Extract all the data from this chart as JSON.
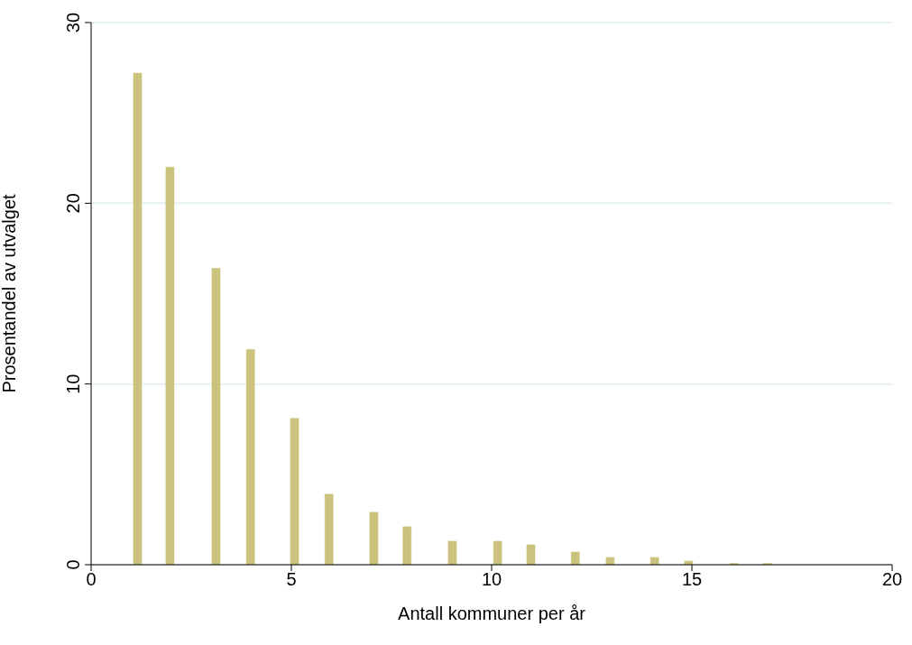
{
  "chart_data": {
    "type": "bar",
    "xlabel": "Antall kommuner per år",
    "ylabel": "Prosentandel av utvalget",
    "x": [
      1.17,
      1.98,
      3.13,
      3.99,
      5.09,
      5.95,
      7.07,
      7.9,
      9.03,
      10.16,
      10.99,
      12.1,
      12.97,
      14.08,
      14.93,
      16.06,
      16.9
    ],
    "values": [
      27.2,
      22.0,
      16.4,
      11.9,
      8.1,
      3.9,
      2.9,
      2.1,
      1.3,
      1.3,
      1.1,
      0.7,
      0.4,
      0.4,
      0.2,
      0.07,
      0.07
    ],
    "color": "#cbc37d",
    "xlim": [
      0,
      20
    ],
    "xticks": [
      0,
      5,
      10,
      15,
      20
    ],
    "ylim": [
      0,
      30
    ],
    "yticks": [
      0,
      10,
      20,
      30
    ],
    "grid": "y"
  }
}
